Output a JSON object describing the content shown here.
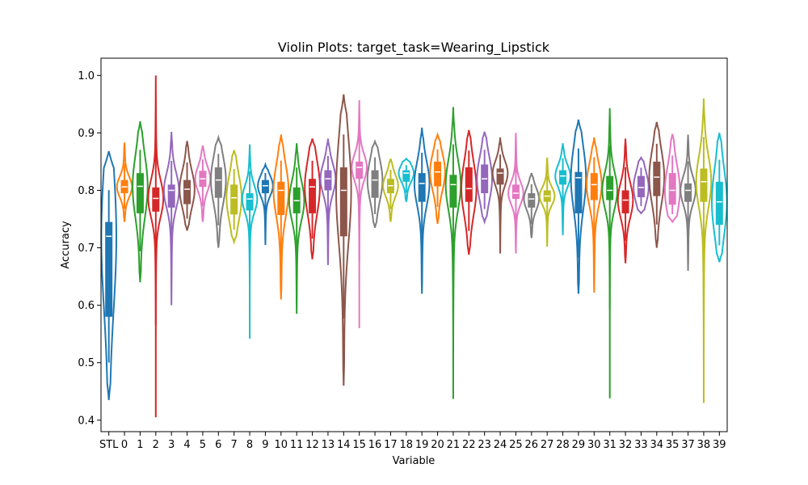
{
  "chart_data": {
    "type": "violin",
    "title": "Violin Plots: target_task=Wearing_Lipstick",
    "xlabel": "Variable",
    "ylabel": "Accuracy",
    "ylim": [
      0.38,
      1.03
    ],
    "yticks": [
      "0.4",
      "0.5",
      "0.6",
      "0.7",
      "0.8",
      "0.9",
      "1.0"
    ],
    "grid": false,
    "legend": "none",
    "palette": [
      "#1f77b4",
      "#ff7f0e",
      "#2ca02c",
      "#d62728",
      "#9467bd",
      "#8c564b",
      "#e377c2",
      "#7f7f7f",
      "#bcbd22",
      "#17becf"
    ],
    "categories": [
      "STL",
      "0",
      "1",
      "2",
      "3",
      "4",
      "5",
      "6",
      "7",
      "8",
      "9",
      "10",
      "11",
      "12",
      "13",
      "14",
      "15",
      "16",
      "17",
      "18",
      "19",
      "20",
      "21",
      "22",
      "23",
      "24",
      "25",
      "26",
      "27",
      "28",
      "29",
      "30",
      "31",
      "32",
      "33",
      "34",
      "35",
      "37",
      "38",
      "39"
    ],
    "series": [
      {
        "category": "STL",
        "min": 0.435,
        "q1": 0.58,
        "median": 0.72,
        "q3": 0.745,
        "max": 0.868
      },
      {
        "category": "0",
        "min": 0.745,
        "q1": 0.795,
        "median": 0.806,
        "q3": 0.818,
        "max": 0.883
      },
      {
        "category": "1",
        "min": 0.64,
        "q1": 0.76,
        "median": 0.807,
        "q3": 0.83,
        "max": 0.92
      },
      {
        "category": "2",
        "min": 0.405,
        "q1": 0.763,
        "median": 0.786,
        "q3": 0.805,
        "max": 1.0
      },
      {
        "category": "3",
        "min": 0.6,
        "q1": 0.77,
        "median": 0.8,
        "q3": 0.81,
        "max": 0.902
      },
      {
        "category": "4",
        "min": 0.73,
        "q1": 0.776,
        "median": 0.802,
        "q3": 0.818,
        "max": 0.886
      },
      {
        "category": "5",
        "min": 0.745,
        "q1": 0.806,
        "median": 0.82,
        "q3": 0.834,
        "max": 0.878
      },
      {
        "category": "6",
        "min": 0.7,
        "q1": 0.787,
        "median": 0.818,
        "q3": 0.84,
        "max": 0.892
      },
      {
        "category": "7",
        "min": 0.71,
        "q1": 0.758,
        "median": 0.787,
        "q3": 0.81,
        "max": 0.87
      },
      {
        "category": "8",
        "min": 0.542,
        "q1": 0.765,
        "median": 0.785,
        "q3": 0.795,
        "max": 0.88
      },
      {
        "category": "9",
        "min": 0.705,
        "q1": 0.795,
        "median": 0.808,
        "q3": 0.818,
        "max": 0.845
      },
      {
        "category": "10",
        "min": 0.61,
        "q1": 0.757,
        "median": 0.8,
        "q3": 0.815,
        "max": 0.897
      },
      {
        "category": "11",
        "min": 0.585,
        "q1": 0.76,
        "median": 0.782,
        "q3": 0.805,
        "max": 0.882
      },
      {
        "category": "12",
        "min": 0.68,
        "q1": 0.76,
        "median": 0.806,
        "q3": 0.82,
        "max": 0.89
      },
      {
        "category": "13",
        "min": 0.67,
        "q1": 0.8,
        "median": 0.82,
        "q3": 0.835,
        "max": 0.89
      },
      {
        "category": "14",
        "min": 0.46,
        "q1": 0.72,
        "median": 0.8,
        "q3": 0.84,
        "max": 0.967
      },
      {
        "category": "15",
        "min": 0.56,
        "q1": 0.82,
        "median": 0.84,
        "q3": 0.85,
        "max": 0.957
      },
      {
        "category": "16",
        "min": 0.735,
        "q1": 0.787,
        "median": 0.818,
        "q3": 0.835,
        "max": 0.885
      },
      {
        "category": "17",
        "min": 0.745,
        "q1": 0.795,
        "median": 0.808,
        "q3": 0.82,
        "max": 0.855
      },
      {
        "category": "18",
        "min": 0.78,
        "q1": 0.815,
        "median": 0.83,
        "q3": 0.835,
        "max": 0.855
      },
      {
        "category": "19",
        "min": 0.62,
        "q1": 0.78,
        "median": 0.812,
        "q3": 0.83,
        "max": 0.909
      },
      {
        "category": "20",
        "min": 0.742,
        "q1": 0.807,
        "median": 0.832,
        "q3": 0.85,
        "max": 0.897
      },
      {
        "category": "21",
        "min": 0.437,
        "q1": 0.77,
        "median": 0.81,
        "q3": 0.827,
        "max": 0.945
      },
      {
        "category": "22",
        "min": 0.688,
        "q1": 0.78,
        "median": 0.803,
        "q3": 0.84,
        "max": 0.905
      },
      {
        "category": "23",
        "min": 0.745,
        "q1": 0.795,
        "median": 0.82,
        "q3": 0.845,
        "max": 0.902
      },
      {
        "category": "24",
        "min": 0.69,
        "q1": 0.81,
        "median": 0.83,
        "q3": 0.838,
        "max": 0.892
      },
      {
        "category": "25",
        "min": 0.69,
        "q1": 0.785,
        "median": 0.795,
        "q3": 0.81,
        "max": 0.9
      },
      {
        "category": "26",
        "min": 0.717,
        "q1": 0.77,
        "median": 0.785,
        "q3": 0.795,
        "max": 0.83
      },
      {
        "category": "27",
        "min": 0.702,
        "q1": 0.78,
        "median": 0.79,
        "q3": 0.8,
        "max": 0.857
      },
      {
        "category": "28",
        "min": 0.722,
        "q1": 0.81,
        "median": 0.825,
        "q3": 0.835,
        "max": 0.882
      },
      {
        "category": "29",
        "min": 0.62,
        "q1": 0.76,
        "median": 0.822,
        "q3": 0.832,
        "max": 0.923
      },
      {
        "category": "30",
        "min": 0.622,
        "q1": 0.783,
        "median": 0.81,
        "q3": 0.83,
        "max": 0.892
      },
      {
        "category": "31",
        "min": 0.438,
        "q1": 0.783,
        "median": 0.8,
        "q3": 0.825,
        "max": 0.943
      },
      {
        "category": "32",
        "min": 0.673,
        "q1": 0.76,
        "median": 0.783,
        "q3": 0.8,
        "max": 0.89
      },
      {
        "category": "33",
        "min": 0.76,
        "q1": 0.788,
        "median": 0.805,
        "q3": 0.825,
        "max": 0.857
      },
      {
        "category": "34",
        "min": 0.7,
        "q1": 0.79,
        "median": 0.823,
        "q3": 0.85,
        "max": 0.919
      },
      {
        "category": "35",
        "min": 0.745,
        "q1": 0.775,
        "median": 0.8,
        "q3": 0.83,
        "max": 0.898
      },
      {
        "category": "37",
        "min": 0.66,
        "q1": 0.78,
        "median": 0.8,
        "q3": 0.812,
        "max": 0.897
      },
      {
        "category": "38",
        "min": 0.43,
        "q1": 0.78,
        "median": 0.815,
        "q3": 0.838,
        "max": 0.96
      },
      {
        "category": "39",
        "min": 0.675,
        "q1": 0.74,
        "median": 0.78,
        "q3": 0.815,
        "max": 0.9
      }
    ]
  }
}
